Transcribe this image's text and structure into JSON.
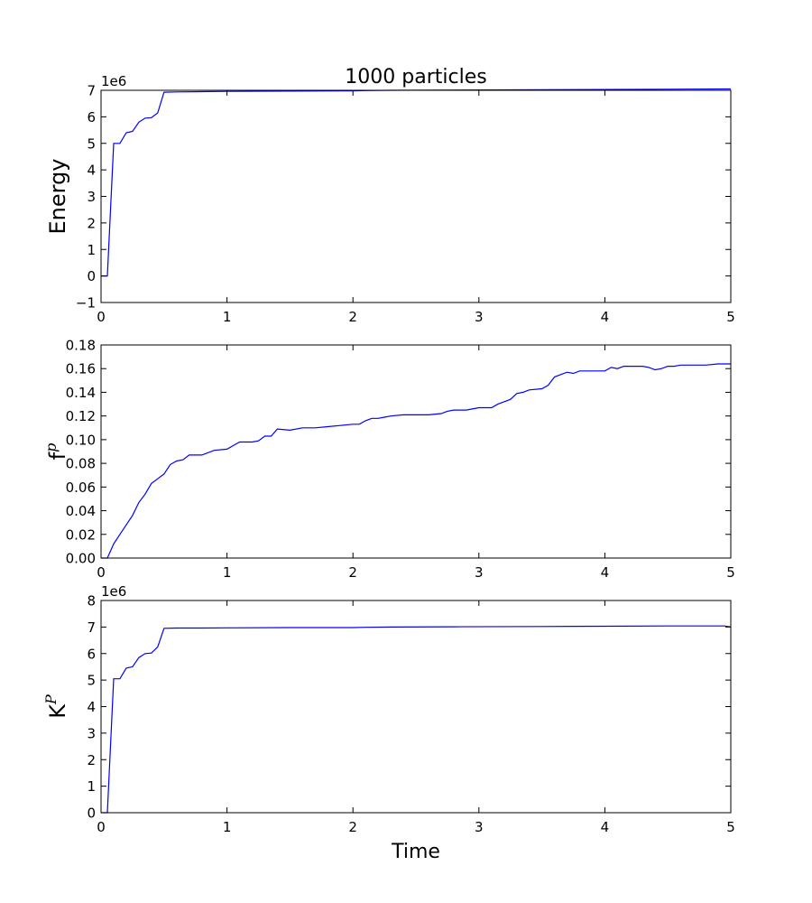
{
  "figure": {
    "background": "#ffffff"
  },
  "chart_data": [
    {
      "type": "line",
      "title": "1000 particles",
      "xlabel": "",
      "ylabel": "Energy",
      "y_offset_label": "1e6",
      "xlim": [
        0,
        5
      ],
      "ylim": [
        -1,
        7
      ],
      "xticks": [
        0,
        1,
        2,
        3,
        4,
        5
      ],
      "xtick_labels": [
        "0",
        "1",
        "2",
        "3",
        "4",
        "5"
      ],
      "yticks": [
        -1,
        0,
        1,
        2,
        3,
        4,
        5,
        6,
        7
      ],
      "ytick_labels": [
        "−1",
        "0",
        "1",
        "2",
        "3",
        "4",
        "5",
        "6",
        "7"
      ],
      "grid": false,
      "color": "#0000ff",
      "series": [
        {
          "x": [
            0,
            0.05,
            0.1,
            0.15,
            0.2,
            0.25,
            0.3,
            0.35,
            0.4,
            0.45,
            0.5,
            0.6,
            0.8,
            1.0,
            1.5,
            2.0,
            2.1,
            2.3,
            2.8,
            3.5,
            4.0,
            4.5,
            5.0
          ],
          "y": [
            0,
            0,
            5.0,
            5.0,
            5.4,
            5.45,
            5.8,
            5.95,
            5.97,
            6.15,
            6.93,
            6.94,
            6.95,
            6.96,
            6.97,
            6.98,
            6.99,
            7.0,
            7.01,
            7.02,
            7.03,
            7.04,
            7.05
          ]
        }
      ]
    },
    {
      "type": "line",
      "title": "",
      "xlabel": "",
      "ylabel": "f",
      "ylabel_sup": "p",
      "xlim": [
        0,
        5
      ],
      "ylim": [
        0,
        0.18
      ],
      "xticks": [
        0,
        1,
        2,
        3,
        4,
        5
      ],
      "xtick_labels": [
        "0",
        "1",
        "2",
        "3",
        "4",
        "5"
      ],
      "yticks": [
        0,
        0.02,
        0.04,
        0.06,
        0.08,
        0.1,
        0.12,
        0.14,
        0.16,
        0.18
      ],
      "ytick_labels": [
        "0.00",
        "0.02",
        "0.04",
        "0.06",
        "0.08",
        "0.10",
        "0.12",
        "0.14",
        "0.16",
        "0.18"
      ],
      "grid": false,
      "color": "#0000ff",
      "series": [
        {
          "x": [
            0,
            0.05,
            0.1,
            0.15,
            0.2,
            0.25,
            0.3,
            0.35,
            0.4,
            0.45,
            0.5,
            0.55,
            0.6,
            0.65,
            0.7,
            0.8,
            0.9,
            1.0,
            1.05,
            1.1,
            1.2,
            1.25,
            1.3,
            1.35,
            1.4,
            1.5,
            1.6,
            1.7,
            1.8,
            1.9,
            2.0,
            2.05,
            2.1,
            2.15,
            2.2,
            2.25,
            2.3,
            2.4,
            2.5,
            2.6,
            2.7,
            2.75,
            2.8,
            2.9,
            3.0,
            3.1,
            3.15,
            3.2,
            3.25,
            3.3,
            3.35,
            3.4,
            3.5,
            3.55,
            3.6,
            3.7,
            3.75,
            3.8,
            3.9,
            4.0,
            4.05,
            4.1,
            4.15,
            4.2,
            4.3,
            4.35,
            4.4,
            4.45,
            4.5,
            4.55,
            4.6,
            4.7,
            4.8,
            4.9,
            5.0
          ],
          "y": [
            0,
            0,
            0.012,
            0.02,
            0.028,
            0.036,
            0.047,
            0.054,
            0.063,
            0.067,
            0.071,
            0.079,
            0.082,
            0.083,
            0.087,
            0.087,
            0.091,
            0.092,
            0.095,
            0.098,
            0.098,
            0.099,
            0.103,
            0.103,
            0.109,
            0.108,
            0.11,
            0.11,
            0.111,
            0.112,
            0.113,
            0.113,
            0.116,
            0.118,
            0.118,
            0.119,
            0.12,
            0.121,
            0.121,
            0.121,
            0.122,
            0.124,
            0.125,
            0.125,
            0.127,
            0.127,
            0.13,
            0.132,
            0.134,
            0.139,
            0.14,
            0.142,
            0.143,
            0.146,
            0.153,
            0.157,
            0.156,
            0.158,
            0.158,
            0.158,
            0.161,
            0.16,
            0.162,
            0.162,
            0.162,
            0.161,
            0.159,
            0.16,
            0.162,
            0.162,
            0.163,
            0.163,
            0.163,
            0.164,
            0.164
          ]
        }
      ]
    },
    {
      "type": "line",
      "title": "",
      "xlabel": "Time",
      "ylabel": "K",
      "ylabel_sup": "P",
      "y_offset_label": "1e6",
      "xlim": [
        0,
        5
      ],
      "ylim": [
        0,
        8
      ],
      "xticks": [
        0,
        1,
        2,
        3,
        4,
        5
      ],
      "xtick_labels": [
        "0",
        "1",
        "2",
        "3",
        "4",
        "5"
      ],
      "yticks": [
        0,
        1,
        2,
        3,
        4,
        5,
        6,
        7,
        8
      ],
      "ytick_labels": [
        "0",
        "1",
        "2",
        "3",
        "4",
        "5",
        "6",
        "7",
        "8"
      ],
      "grid": false,
      "color": "#0000ff",
      "series": [
        {
          "x": [
            0,
            0.05,
            0.1,
            0.15,
            0.2,
            0.25,
            0.3,
            0.35,
            0.4,
            0.45,
            0.5,
            0.6,
            0.8,
            1.0,
            1.5,
            2.0,
            2.1,
            2.3,
            2.8,
            3.5,
            4.0,
            4.5,
            4.95,
            5.0
          ],
          "y": [
            0,
            0,
            5.05,
            5.05,
            5.45,
            5.5,
            5.85,
            6.0,
            6.02,
            6.25,
            6.95,
            6.96,
            6.96,
            6.97,
            6.98,
            6.98,
            6.99,
            7.0,
            7.01,
            7.02,
            7.03,
            7.04,
            7.04,
            7.0
          ]
        }
      ]
    }
  ]
}
